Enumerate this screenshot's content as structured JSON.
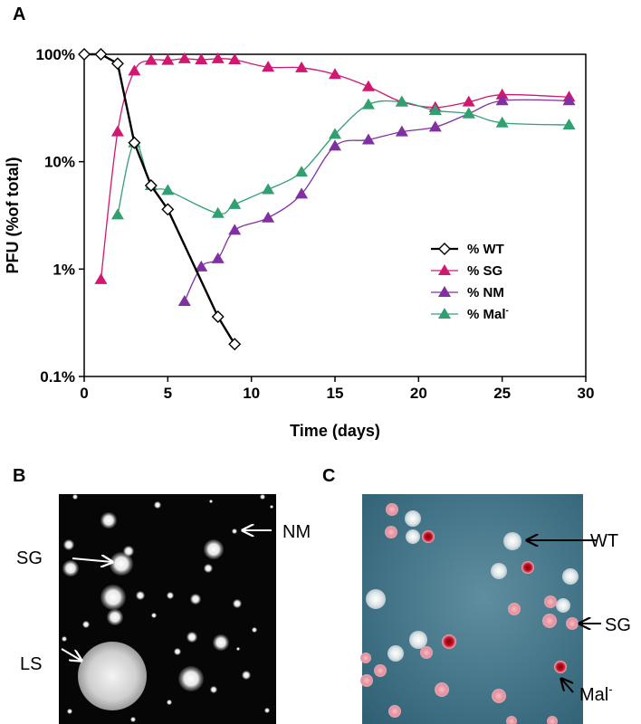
{
  "panels": {
    "a": "A",
    "b": "B",
    "c": "C"
  },
  "chart_data": {
    "type": "line",
    "xlabel": "Time  (days)",
    "ylabel": "PFU (%of total)",
    "xlim": [
      0,
      30
    ],
    "ylim": [
      0.1,
      100
    ],
    "yscale": "log",
    "grid": false,
    "legend_position": "center-right",
    "x_ticks": [
      0,
      5,
      10,
      15,
      20,
      25,
      30
    ],
    "x_tick_labels": [
      "0",
      "5",
      "10",
      "15",
      "20",
      "25",
      "30"
    ],
    "y_ticks": [
      0.1,
      1,
      10,
      100
    ],
    "y_tick_labels": [
      "0.1%",
      "1%",
      "10%",
      "100%"
    ],
    "series": [
      {
        "name": "% WT",
        "color": "#000000",
        "marker": "diamond-open",
        "smooth": false,
        "x": [
          0,
          1,
          2,
          3,
          4,
          5,
          8,
          9
        ],
        "y": [
          100,
          100,
          82,
          15,
          6,
          3.6,
          0.36,
          0.2
        ]
      },
      {
        "name": "% SG",
        "color": "#d01870",
        "marker": "triangle",
        "smooth": true,
        "x": [
          1,
          2,
          3,
          4,
          5,
          6,
          7,
          8,
          9,
          11,
          13,
          15,
          17,
          19,
          21,
          23,
          25,
          29
        ],
        "y": [
          0.8,
          19,
          70,
          88,
          88,
          91,
          89,
          91,
          89,
          76,
          75,
          65,
          50,
          36,
          32,
          36,
          42,
          40
        ]
      },
      {
        "name": "% NM",
        "color": "#8030a0",
        "marker": "triangle",
        "smooth": true,
        "x": [
          6,
          7,
          8,
          9,
          11,
          13,
          15,
          17,
          19,
          21,
          23,
          25,
          29
        ],
        "y": [
          0.5,
          1.05,
          1.25,
          2.3,
          3.0,
          5.0,
          14,
          16,
          19,
          21,
          28,
          37,
          37
        ]
      },
      {
        "name": "% Mal",
        "name_sup": "-",
        "color": "#30a070",
        "marker": "triangle",
        "smooth": true,
        "x": [
          2,
          3,
          4,
          5,
          8,
          9,
          11,
          13,
          15,
          17,
          19,
          21,
          23,
          25,
          29
        ],
        "y": [
          3.2,
          15,
          6,
          5.4,
          3.3,
          4.0,
          5.5,
          8.0,
          18,
          34,
          36,
          30,
          28,
          23,
          22
        ]
      }
    ]
  },
  "photo_b": {
    "labels": [
      {
        "text": "NM",
        "sup": ""
      },
      {
        "text": "SG",
        "sup": ""
      },
      {
        "text": "LS",
        "sup": ""
      }
    ]
  },
  "photo_c": {
    "labels": [
      {
        "text": "WT",
        "sup": ""
      },
      {
        "text": "SG",
        "sup": ""
      },
      {
        "text": "Mal",
        "sup": "-"
      }
    ]
  }
}
